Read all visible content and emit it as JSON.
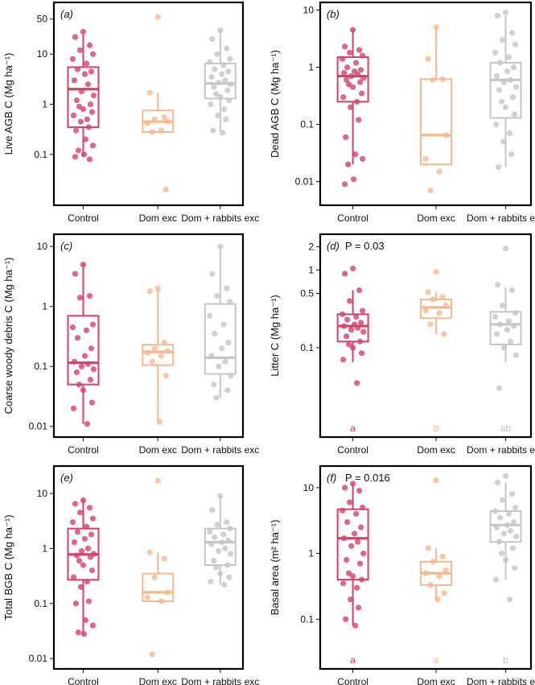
{
  "colors": {
    "Control": "#d6416a",
    "Dom exc": "#f5b990",
    "Dom + rabbits exc": "#c6c6c6",
    "frame": "#000000"
  },
  "chart_data": [
    {
      "type": "box",
      "panel": "(a)",
      "ylabel": "Live AGB C (Mg ha⁻¹)",
      "scale": "log",
      "ylim": [
        0.013,
        80
      ],
      "yticks": [
        0.1,
        1,
        10,
        50
      ],
      "yticklabels": [
        "0.1",
        "1",
        "10",
        "50"
      ],
      "categories": [
        "Control",
        "Dom exc",
        "Dom + rabbits exc"
      ],
      "boxes": [
        {
          "group": "Control",
          "q1": 0.35,
          "median": 2.0,
          "q3": 5.5,
          "whisker_low": 0.09,
          "whisker_high": 25
        },
        {
          "group": "Dom exc",
          "q1": 0.28,
          "median": 0.45,
          "q3": 0.75,
          "whisker_low": 0.28,
          "whisker_high": 1.7
        },
        {
          "group": "Dom + rabbits exc",
          "q1": 1.3,
          "median": 2.6,
          "q3": 6.5,
          "whisker_low": 0.28,
          "whisker_high": 30
        }
      ],
      "points": [
        [
          28,
          22,
          15,
          12,
          10,
          8,
          6.5,
          5,
          4.5,
          4,
          3,
          2.5,
          1.8,
          1.5,
          1.2,
          1.0,
          0.9,
          0.8,
          0.7,
          0.6,
          0.5,
          0.45,
          0.35,
          0.3,
          0.2,
          0.15,
          0.12,
          0.1,
          0.09,
          0.08
        ],
        [
          55,
          1.7,
          0.55,
          0.5,
          0.45,
          0.42,
          0.3,
          0.28,
          0.02
        ],
        [
          30,
          20,
          13,
          10,
          8,
          7,
          6,
          5,
          4.5,
          4,
          3.5,
          3,
          2.7,
          2.5,
          2.2,
          1.9,
          1.6,
          1.4,
          1.2,
          1.0,
          0.8,
          0.6,
          0.5,
          0.3,
          0.27
        ]
      ]
    },
    {
      "type": "box",
      "panel": "(b)",
      "ylabel": "Dead AGB C (Mg ha⁻¹)",
      "scale": "log",
      "ylim": [
        0.005,
        10.5
      ],
      "yticks": [
        0.01,
        0.1,
        1,
        10
      ],
      "yticklabels": [
        "0.01",
        "0.1",
        "1",
        "10"
      ],
      "categories": [
        "Control",
        "Dom exc",
        "Dom + rabbits exc"
      ],
      "boxes": [
        {
          "group": "Control",
          "q1": 0.25,
          "median": 0.7,
          "q3": 1.5,
          "whisker_low": 0.02,
          "whisker_high": 4.5
        },
        {
          "group": "Dom exc",
          "q1": 0.02,
          "median": 0.065,
          "q3": 0.62,
          "whisker_low": 0.02,
          "whisker_high": 5.0
        },
        {
          "group": "Dom + rabbits exc",
          "q1": 0.13,
          "median": 0.6,
          "q3": 1.2,
          "whisker_low": 0.018,
          "whisker_high": 8.0
        }
      ],
      "points": [
        [
          4.5,
          2.3,
          2.0,
          1.8,
          1.6,
          1.4,
          1.2,
          1.0,
          0.9,
          0.85,
          0.8,
          0.75,
          0.7,
          0.65,
          0.6,
          0.55,
          0.5,
          0.45,
          0.35,
          0.3,
          0.25,
          0.2,
          0.12,
          0.06,
          0.03,
          0.025,
          0.02,
          0.011,
          0.009
        ],
        [
          5.0,
          1.4,
          0.62,
          0.6,
          0.065,
          0.025,
          0.015,
          0.007
        ],
        [
          9,
          8,
          4,
          3,
          2.5,
          1.8,
          1.5,
          1.2,
          1.0,
          0.85,
          0.7,
          0.6,
          0.55,
          0.45,
          0.4,
          0.3,
          0.25,
          0.2,
          0.15,
          0.1,
          0.07,
          0.05,
          0.03,
          0.018
        ]
      ]
    },
    {
      "type": "box",
      "panel": "(c)",
      "ylabel": "Coarse woody debris C (Mg ha⁻¹)",
      "scale": "log",
      "ylim": [
        0.0085,
        12.5
      ],
      "yticks": [
        0.01,
        0.1,
        1,
        10
      ],
      "yticklabels": [
        "0.01",
        "0.1",
        "1",
        "10"
      ],
      "categories": [
        "Control",
        "Dom exc",
        "Dom + rabbits exc"
      ],
      "boxes": [
        {
          "group": "Control",
          "q1": 0.05,
          "median": 0.115,
          "q3": 0.7,
          "whisker_low": 0.011,
          "whisker_high": 5.0
        },
        {
          "group": "Dom exc",
          "q1": 0.105,
          "median": 0.175,
          "q3": 0.23,
          "whisker_low": 0.012,
          "whisker_high": 2.0
        },
        {
          "group": "Dom + rabbits exc",
          "q1": 0.075,
          "median": 0.14,
          "q3": 1.1,
          "whisker_low": 0.03,
          "whisker_high": 10
        }
      ],
      "points": [
        [
          5.0,
          3.5,
          1.5,
          1.4,
          0.5,
          0.45,
          0.4,
          0.3,
          0.2,
          0.15,
          0.12,
          0.11,
          0.1,
          0.09,
          0.08,
          0.06,
          0.05,
          0.04,
          0.025,
          0.02,
          0.011
        ],
        [
          2.0,
          1.8,
          0.25,
          0.2,
          0.18,
          0.17,
          0.15,
          0.12,
          0.07,
          0.012
        ],
        [
          10,
          3.5,
          2.0,
          1.5,
          1.2,
          0.7,
          0.5,
          0.35,
          0.25,
          0.2,
          0.15,
          0.12,
          0.1,
          0.07,
          0.05,
          0.04,
          0.03
        ]
      ]
    },
    {
      "type": "box",
      "panel": "(d)",
      "annotation": "P = 0.03",
      "ylabel": "Litter C (Mg ha⁻¹)",
      "scale": "log",
      "ylim": [
        0.0085,
        2.4
      ],
      "yticks": [
        0.1,
        0.5,
        1,
        2
      ],
      "yticklabels": [
        "0.1",
        "0.5",
        "1",
        "2"
      ],
      "categories": [
        "Control",
        "Dom exc",
        "Dom + rabbits exc"
      ],
      "significance": [
        "a",
        "b",
        "ab"
      ],
      "boxes": [
        {
          "group": "Control",
          "q1": 0.12,
          "median": 0.19,
          "q3": 0.27,
          "whisker_low": 0.065,
          "whisker_high": 0.55
        },
        {
          "group": "Dom exc",
          "q1": 0.24,
          "median": 0.33,
          "q3": 0.42,
          "whisker_low": 0.15,
          "whisker_high": 0.52
        },
        {
          "group": "Dom + rabbits exc",
          "q1": 0.11,
          "median": 0.2,
          "q3": 0.29,
          "whisker_low": 0.065,
          "whisker_high": 0.6
        }
      ],
      "points": [
        [
          1.05,
          0.9,
          0.55,
          0.4,
          0.3,
          0.27,
          0.25,
          0.23,
          0.21,
          0.2,
          0.19,
          0.18,
          0.17,
          0.16,
          0.14,
          0.12,
          0.11,
          0.1,
          0.085,
          0.07,
          0.035
        ],
        [
          0.95,
          0.52,
          0.45,
          0.42,
          0.35,
          0.3,
          0.28,
          0.2,
          0.15
        ],
        [
          1.9,
          0.65,
          0.55,
          0.35,
          0.28,
          0.25,
          0.22,
          0.2,
          0.19,
          0.17,
          0.15,
          0.12,
          0.1,
          0.08,
          0.03
        ]
      ]
    },
    {
      "type": "box",
      "panel": "(e)",
      "ylabel": "Total BGB C (Mg ha⁻¹)",
      "scale": "log",
      "ylim": [
        0.0085,
        24
      ],
      "yticks": [
        0.01,
        0.1,
        1,
        10
      ],
      "yticklabels": [
        "0.01",
        "0.1",
        "1",
        "10"
      ],
      "categories": [
        "Control",
        "Dom exc",
        "Dom + rabbits exc"
      ],
      "boxes": [
        {
          "group": "Control",
          "q1": 0.27,
          "median": 0.78,
          "q3": 2.3,
          "whisker_low": 0.027,
          "whisker_high": 8.0
        },
        {
          "group": "Dom exc",
          "q1": 0.11,
          "median": 0.16,
          "q3": 0.35,
          "whisker_low": 0.11,
          "whisker_high": 0.85
        },
        {
          "group": "Dom + rabbits exc",
          "q1": 0.5,
          "median": 1.3,
          "q3": 2.3,
          "whisker_low": 0.22,
          "whisker_high": 9.0
        }
      ],
      "points": [
        [
          7.5,
          6.5,
          5.5,
          4.5,
          3.5,
          3.0,
          2.5,
          2.0,
          1.8,
          1.5,
          1.3,
          1.0,
          0.9,
          0.8,
          0.75,
          0.7,
          0.6,
          0.5,
          0.4,
          0.3,
          0.25,
          0.2,
          0.11,
          0.1,
          0.05,
          0.04,
          0.03,
          0.028
        ],
        [
          17,
          0.85,
          0.65,
          0.3,
          0.16,
          0.13,
          0.11,
          0.012
        ],
        [
          9,
          5,
          3,
          2.7,
          2.3,
          2.0,
          1.8,
          1.6,
          1.4,
          1.3,
          1.2,
          1.0,
          0.9,
          0.8,
          0.6,
          0.5,
          0.45,
          0.35,
          0.3,
          0.25,
          0.22
        ]
      ]
    },
    {
      "type": "box",
      "panel": "(f)",
      "annotation": "P = 0.016",
      "ylabel": "Basal area (m² ha⁻¹)",
      "scale": "log",
      "ylim": [
        0.022,
        17
      ],
      "yticks": [
        0.1,
        1,
        10
      ],
      "yticklabels": [
        "0.1",
        "1",
        "10"
      ],
      "categories": [
        "Control",
        "Dom exc",
        "Dom + rabbits exc"
      ],
      "significance": [
        "a",
        "a",
        "b"
      ],
      "boxes": [
        {
          "group": "Control",
          "q1": 0.4,
          "median": 1.7,
          "q3": 4.7,
          "whisker_low": 0.08,
          "whisker_high": 11.5
        },
        {
          "group": "Dom exc",
          "q1": 0.33,
          "median": 0.5,
          "q3": 0.75,
          "whisker_low": 0.2,
          "whisker_high": 1.2
        },
        {
          "group": "Dom + rabbits exc",
          "q1": 1.5,
          "median": 2.7,
          "q3": 4.4,
          "whisker_low": 0.4,
          "whisker_high": 12
        }
      ],
      "points": [
        [
          11.5,
          10,
          9,
          6,
          5,
          4.5,
          4,
          3,
          2.5,
          2.0,
          1.7,
          1.5,
          1.3,
          1.0,
          0.8,
          0.7,
          0.5,
          0.45,
          0.4,
          0.35,
          0.3,
          0.2,
          0.15,
          0.1,
          0.08
        ],
        [
          13,
          1.2,
          0.9,
          0.75,
          0.55,
          0.5,
          0.45,
          0.33,
          0.25,
          0.2
        ],
        [
          15,
          12,
          8,
          6.5,
          5,
          4.4,
          4,
          3.5,
          3,
          2.7,
          2.5,
          2.2,
          2.0,
          1.8,
          1.5,
          1.2,
          1.0,
          0.8,
          0.6,
          0.4,
          0.2
        ]
      ]
    }
  ]
}
